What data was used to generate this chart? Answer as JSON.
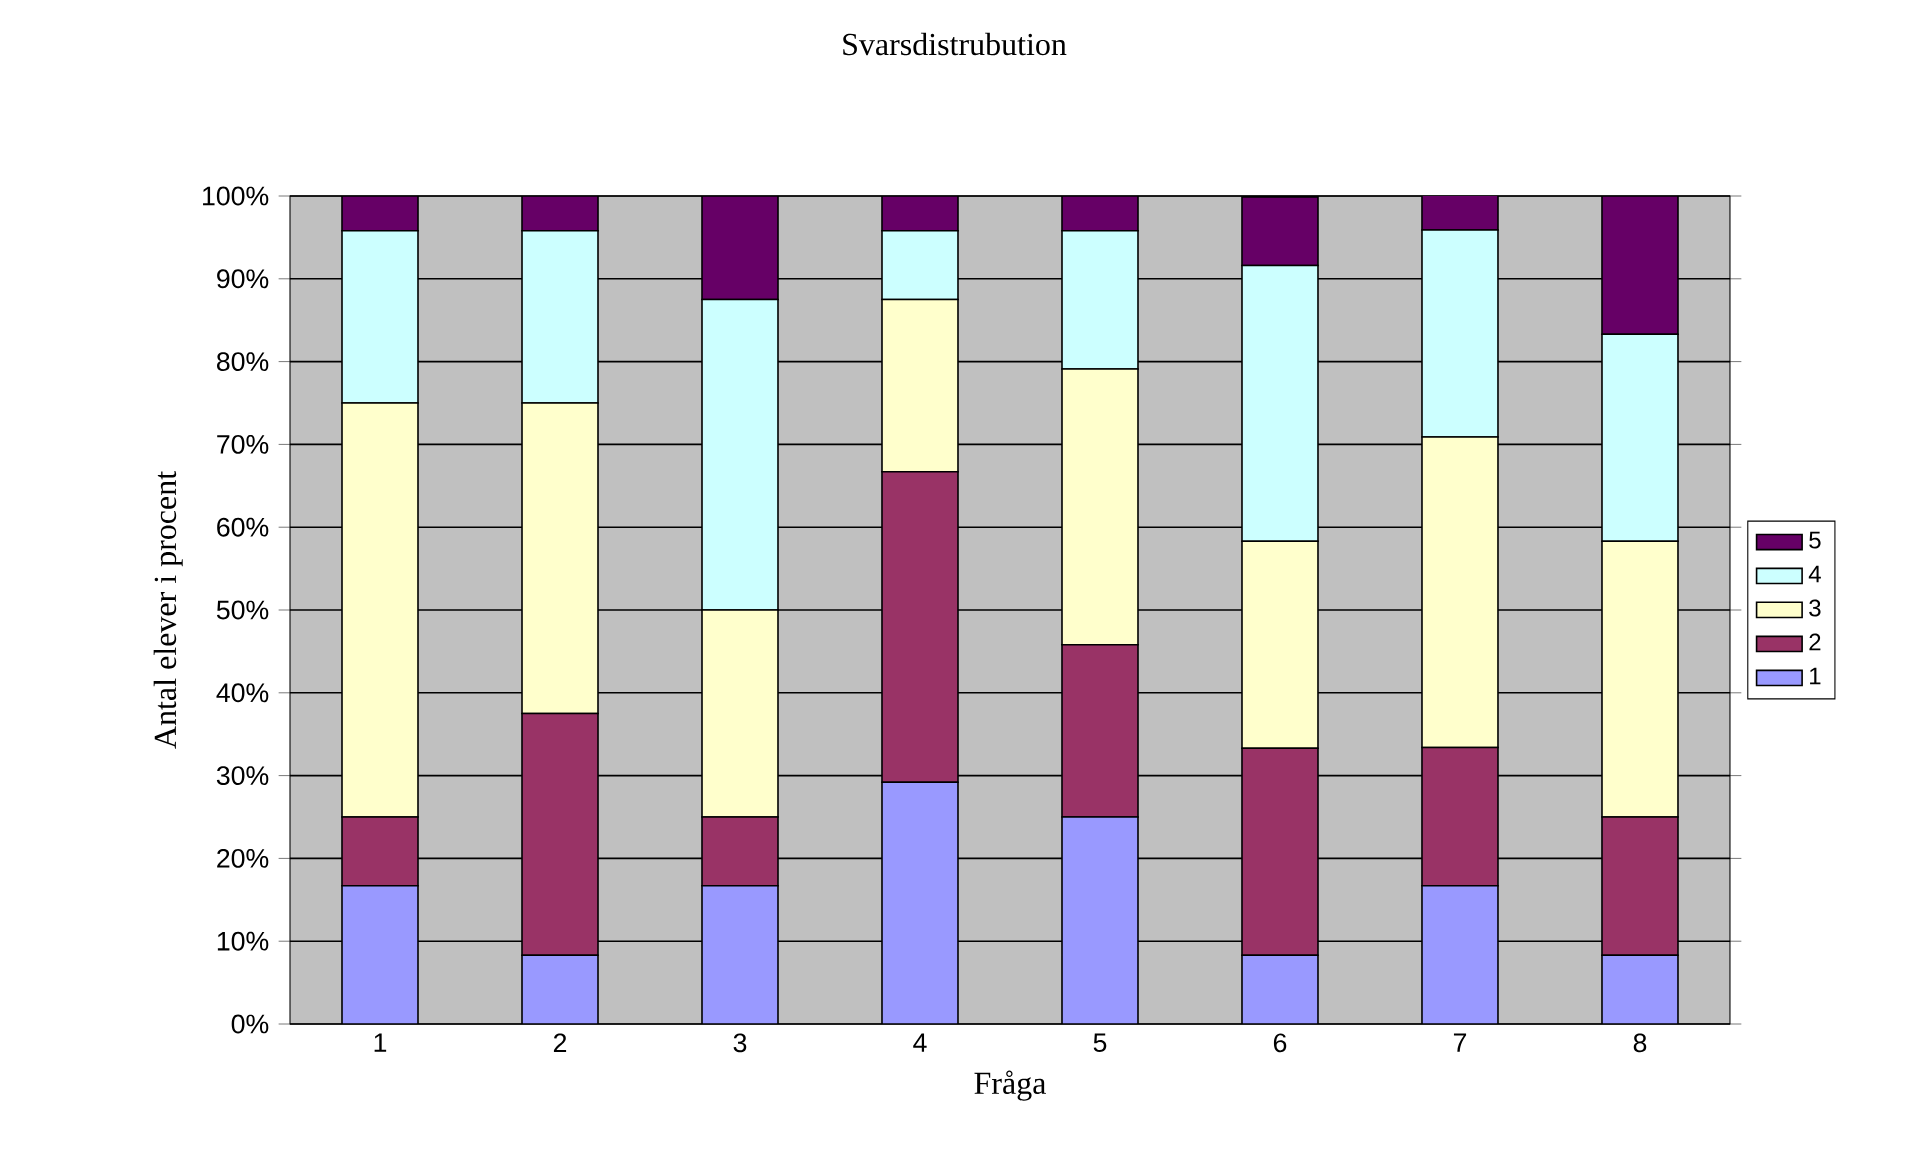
{
  "chart_data": {
    "type": "bar",
    "stacked": true,
    "title": "Svarsdistrubution",
    "xlabel": "Fråga",
    "ylabel": "Antal elever i procent",
    "categories": [
      "1",
      "2",
      "3",
      "4",
      "5",
      "6",
      "7",
      "8"
    ],
    "series": [
      {
        "name": "1",
        "color": "#9999ff",
        "values": [
          16.7,
          8.3,
          16.7,
          29.2,
          25,
          8.3,
          16.7,
          8.3
        ]
      },
      {
        "name": "2",
        "color": "#993366",
        "values": [
          8.3,
          29.2,
          8.3,
          37.5,
          20.8,
          25,
          16.7,
          16.7
        ]
      },
      {
        "name": "3",
        "color": "#ffffcc",
        "values": [
          50,
          37.5,
          25,
          20.8,
          33.3,
          25,
          37.5,
          33.3
        ]
      },
      {
        "name": "4",
        "color": "#ccffff",
        "values": [
          20.8,
          20.8,
          37.5,
          8.3,
          16.7,
          33.3,
          25,
          25
        ]
      },
      {
        "name": "5",
        "color": "#660066",
        "values": [
          4.2,
          4.2,
          12.5,
          4.2,
          4.2,
          8.3,
          4.2,
          16.7
        ]
      }
    ],
    "ylim": [
      0,
      100
    ],
    "yticks": [
      {
        "value": 0,
        "label": "0%"
      },
      {
        "value": 10,
        "label": "10%"
      },
      {
        "value": 20,
        "label": "20%"
      },
      {
        "value": 30,
        "label": "30%"
      },
      {
        "value": 40,
        "label": "40%"
      },
      {
        "value": 50,
        "label": "50%"
      },
      {
        "value": 60,
        "label": "60%"
      },
      {
        "value": 70,
        "label": "70%"
      },
      {
        "value": 80,
        "label": "80%"
      },
      {
        "value": 90,
        "label": "90%"
      },
      {
        "value": 100,
        "label": "100%"
      }
    ],
    "grid": "y",
    "legend": "right"
  }
}
